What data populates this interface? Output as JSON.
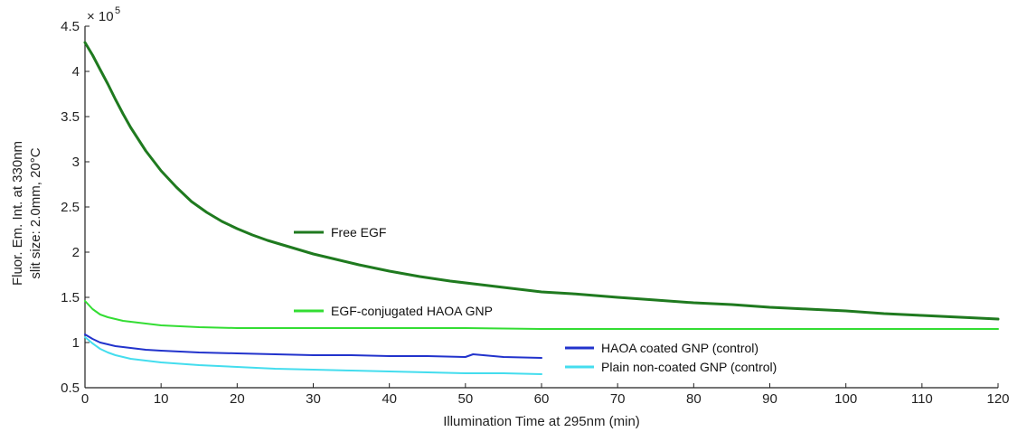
{
  "chart_data": {
    "type": "line",
    "xlabel": "Illumination Time at 295nm (min)",
    "ylabel_lines": [
      "Fluor. Em. Int. at 330nm",
      "slit size: 2.0mm, 20°C"
    ],
    "y_exponent_label": {
      "base": "× 10",
      "power": "5"
    },
    "xlim": [
      0,
      120
    ],
    "ylim": [
      0.5,
      4.5
    ],
    "xticks": [
      "0",
      "10",
      "20",
      "30",
      "40",
      "50",
      "60",
      "70",
      "80",
      "90",
      "100",
      "110",
      "120"
    ],
    "yticks": [
      "0.5",
      "1",
      "1.5",
      "2",
      "2.5",
      "3",
      "3.5",
      "4",
      "4.5"
    ],
    "grid": false,
    "series": [
      {
        "name": "Free EGF",
        "color": "#1f7a1f",
        "x": [
          0,
          1,
          2,
          3,
          4,
          5,
          6,
          8,
          10,
          12,
          14,
          16,
          18,
          20,
          22,
          24,
          26,
          28,
          30,
          33,
          36,
          40,
          44,
          48,
          52,
          56,
          60,
          64,
          70,
          75,
          80,
          85,
          90,
          95,
          100,
          105,
          110,
          115,
          120
        ],
        "y": [
          4.32,
          4.18,
          4.02,
          3.86,
          3.69,
          3.53,
          3.38,
          3.12,
          2.9,
          2.72,
          2.56,
          2.44,
          2.34,
          2.26,
          2.19,
          2.13,
          2.08,
          2.03,
          1.98,
          1.92,
          1.86,
          1.79,
          1.73,
          1.68,
          1.64,
          1.6,
          1.56,
          1.54,
          1.5,
          1.47,
          1.44,
          1.42,
          1.39,
          1.37,
          1.35,
          1.32,
          1.3,
          1.28,
          1.26
        ]
      },
      {
        "name": "EGF-conjugated HAOA GNP",
        "color": "#33dd33",
        "x": [
          0,
          1,
          2,
          3,
          4,
          5,
          6,
          8,
          10,
          15,
          20,
          30,
          40,
          50,
          60,
          70,
          80,
          90,
          100,
          110,
          120
        ],
        "y": [
          1.46,
          1.37,
          1.31,
          1.28,
          1.26,
          1.24,
          1.23,
          1.21,
          1.19,
          1.17,
          1.16,
          1.16,
          1.16,
          1.16,
          1.15,
          1.15,
          1.15,
          1.15,
          1.15,
          1.15,
          1.15
        ]
      },
      {
        "name": "HAOA coated GNP (control)",
        "color": "#2233cc",
        "x": [
          0,
          1,
          2,
          3,
          4,
          5,
          6,
          8,
          10,
          15,
          20,
          25,
          30,
          35,
          40,
          45,
          50,
          51,
          55,
          60
        ],
        "y": [
          1.09,
          1.04,
          1.0,
          0.98,
          0.96,
          0.95,
          0.94,
          0.92,
          0.91,
          0.89,
          0.88,
          0.87,
          0.86,
          0.86,
          0.85,
          0.85,
          0.84,
          0.87,
          0.84,
          0.83
        ]
      },
      {
        "name": "Plain non-coated GNP (control)",
        "color": "#44ddee",
        "x": [
          0,
          1,
          2,
          3,
          4,
          5,
          6,
          8,
          10,
          15,
          20,
          25,
          30,
          35,
          40,
          45,
          50,
          55,
          60
        ],
        "y": [
          1.06,
          0.99,
          0.93,
          0.89,
          0.86,
          0.84,
          0.82,
          0.8,
          0.78,
          0.75,
          0.73,
          0.71,
          0.7,
          0.69,
          0.68,
          0.67,
          0.66,
          0.66,
          0.65
        ]
      }
    ],
    "legend": {
      "placement": "inline",
      "entries": [
        {
          "label": "Free EGF",
          "color": "#1f7a1f"
        },
        {
          "label": "EGF-conjugated HAOA GNP",
          "color": "#33dd33"
        },
        {
          "label": "HAOA coated GNP (control)",
          "color": "#2233cc"
        },
        {
          "label": "Plain non-coated GNP (control)",
          "color": "#44ddee"
        }
      ]
    }
  }
}
